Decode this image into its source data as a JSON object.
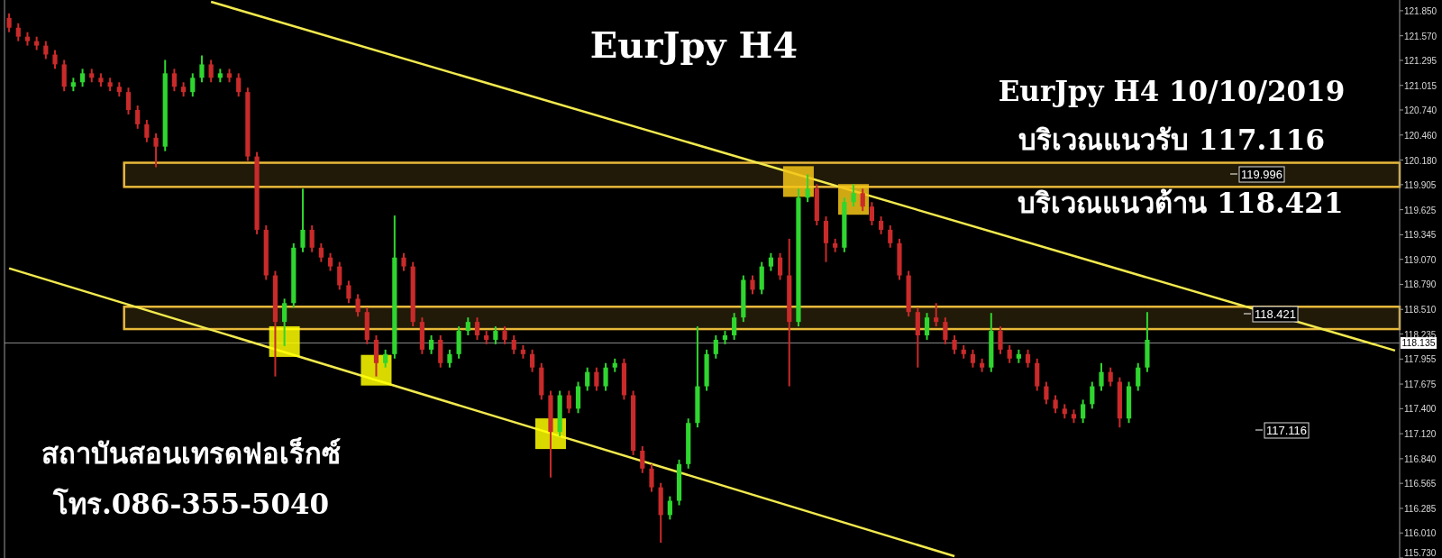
{
  "chart_data": {
    "type": "candlestick",
    "title": "EurJpy H4",
    "annotations": [
      "EurJpy H4 10/10/2019",
      "บริเวณแนวรับ 117.116",
      "บริเวณแนวต้าน 118.421",
      "สถาบันสอนเทรดฟอเร็กซ์",
      "โทร.086-355-5040",
      "119.996",
      "118.421",
      "117.116"
    ],
    "categories": [
      null,
      null,
      null,
      null,
      null,
      null,
      null,
      null,
      null,
      null,
      null,
      null,
      null,
      null,
      null,
      null,
      null,
      null,
      null,
      null,
      null,
      null,
      null,
      null,
      null,
      null,
      null,
      null,
      null,
      null,
      null,
      null,
      null,
      null,
      null,
      null,
      null,
      null,
      null,
      null,
      null,
      null,
      null,
      null,
      null,
      null,
      null,
      null,
      null,
      null,
      null,
      null,
      null,
      null,
      null,
      null,
      null,
      null,
      null,
      null,
      null,
      null,
      null,
      null,
      null,
      null,
      null,
      null,
      null,
      null,
      null,
      null,
      null,
      null,
      null,
      null,
      null,
      null,
      null,
      null,
      null,
      null,
      null,
      null,
      null,
      null,
      null,
      null,
      null,
      null,
      null,
      null,
      null,
      null,
      null,
      null,
      null,
      null,
      null,
      null,
      null,
      null,
      null,
      null,
      null,
      null,
      null,
      null,
      null,
      null,
      null,
      null,
      null,
      null,
      null,
      null,
      null,
      null,
      null,
      null,
      null,
      null,
      null,
      null,
      null,
      null,
      null,
      null,
      null,
      null,
      null,
      null,
      null,
      null,
      null,
      null,
      null,
      null,
      null,
      null,
      null,
      null,
      null,
      null,
      null,
      null,
      null,
      null,
      null,
      null,
      null,
      null
    ],
    "ohlc": [
      [
        121.77,
        121.82,
        121.61,
        121.66
      ],
      [
        121.66,
        121.71,
        121.51,
        121.56
      ],
      [
        121.56,
        121.61,
        121.46,
        121.51
      ],
      [
        121.51,
        121.56,
        121.41,
        121.46
      ],
      [
        121.46,
        121.51,
        121.31,
        121.36
      ],
      [
        121.36,
        121.41,
        121.2,
        121.25
      ],
      [
        121.25,
        121.3,
        120.95,
        121.0
      ],
      [
        121.0,
        121.1,
        120.95,
        121.05
      ],
      [
        121.05,
        121.2,
        121.0,
        121.15
      ],
      [
        121.15,
        121.2,
        121.05,
        121.1
      ],
      [
        121.1,
        121.15,
        121.0,
        121.05
      ],
      [
        121.05,
        121.1,
        120.95,
        121.0
      ],
      [
        121.0,
        121.05,
        120.89,
        120.94
      ],
      [
        120.94,
        120.99,
        120.69,
        120.74
      ],
      [
        120.74,
        120.79,
        120.53,
        120.58
      ],
      [
        120.58,
        120.63,
        120.38,
        120.43
      ],
      [
        120.43,
        120.48,
        120.1,
        120.33
      ],
      [
        120.33,
        121.3,
        120.28,
        121.15
      ],
      [
        121.15,
        121.2,
        120.95,
        121.0
      ],
      [
        121.0,
        121.05,
        120.89,
        120.94
      ],
      [
        120.94,
        121.15,
        120.89,
        121.1
      ],
      [
        121.1,
        121.35,
        121.05,
        121.25
      ],
      [
        121.25,
        121.3,
        121.05,
        121.1
      ],
      [
        121.1,
        121.2,
        121.05,
        121.15
      ],
      [
        121.15,
        121.2,
        121.05,
        121.1
      ],
      [
        121.1,
        121.15,
        120.89,
        120.94
      ],
      [
        120.94,
        120.99,
        120.17,
        120.22
      ],
      [
        120.22,
        120.27,
        119.35,
        119.4
      ],
      [
        119.4,
        119.45,
        118.84,
        118.89
      ],
      [
        118.89,
        118.94,
        117.76,
        118.37
      ],
      [
        118.37,
        118.63,
        118.1,
        118.58
      ],
      [
        118.58,
        119.25,
        118.53,
        119.2
      ],
      [
        119.2,
        119.86,
        119.15,
        119.4
      ],
      [
        119.4,
        119.45,
        119.15,
        119.2
      ],
      [
        119.2,
        119.25,
        119.04,
        119.09
      ],
      [
        119.09,
        119.14,
        118.94,
        118.99
      ],
      [
        118.99,
        119.04,
        118.73,
        118.78
      ],
      [
        118.78,
        118.83,
        118.58,
        118.63
      ],
      [
        118.63,
        118.68,
        118.43,
        118.48
      ],
      [
        118.48,
        118.53,
        118.12,
        118.17
      ],
      [
        118.17,
        118.22,
        117.76,
        117.91
      ],
      [
        117.91,
        118.06,
        117.86,
        118.01
      ],
      [
        118.01,
        119.56,
        117.96,
        119.09
      ],
      [
        119.09,
        119.14,
        118.94,
        118.99
      ],
      [
        118.99,
        119.04,
        118.32,
        118.37
      ],
      [
        118.37,
        118.42,
        118.01,
        118.06
      ],
      [
        118.06,
        118.22,
        118.01,
        118.17
      ],
      [
        118.17,
        118.22,
        117.86,
        117.91
      ],
      [
        117.91,
        118.06,
        117.86,
        118.01
      ],
      [
        118.01,
        118.32,
        117.96,
        118.27
      ],
      [
        118.27,
        118.42,
        118.22,
        118.37
      ],
      [
        118.37,
        118.42,
        118.17,
        118.22
      ],
      [
        118.22,
        118.27,
        118.12,
        118.17
      ],
      [
        118.17,
        118.32,
        118.12,
        118.27
      ],
      [
        118.27,
        118.32,
        118.12,
        118.17
      ],
      [
        118.17,
        118.22,
        118.01,
        118.06
      ],
      [
        118.06,
        118.11,
        117.96,
        118.01
      ],
      [
        118.01,
        118.06,
        117.81,
        117.86
      ],
      [
        117.86,
        117.91,
        117.5,
        117.55
      ],
      [
        117.55,
        117.6,
        116.63,
        117.14
      ],
      [
        117.14,
        117.6,
        117.09,
        117.55
      ],
      [
        117.55,
        117.6,
        117.35,
        117.4
      ],
      [
        117.4,
        117.7,
        117.35,
        117.65
      ],
      [
        117.65,
        117.86,
        117.6,
        117.81
      ],
      [
        117.81,
        117.86,
        117.6,
        117.65
      ],
      [
        117.65,
        117.91,
        117.6,
        117.86
      ],
      [
        117.86,
        117.96,
        117.81,
        117.91
      ],
      [
        117.91,
        117.96,
        117.5,
        117.55
      ],
      [
        117.55,
        117.6,
        116.88,
        116.93
      ],
      [
        116.93,
        116.98,
        116.68,
        116.73
      ],
      [
        116.73,
        116.78,
        116.47,
        116.52
      ],
      [
        116.52,
        116.57,
        115.9,
        116.21
      ],
      [
        116.21,
        116.42,
        116.16,
        116.37
      ],
      [
        116.37,
        116.83,
        116.32,
        116.78
      ],
      [
        116.78,
        117.29,
        116.73,
        117.24
      ],
      [
        117.24,
        118.32,
        117.19,
        117.65
      ],
      [
        117.65,
        118.06,
        117.6,
        118.01
      ],
      [
        118.01,
        118.22,
        117.96,
        118.17
      ],
      [
        118.17,
        118.27,
        118.12,
        118.22
      ],
      [
        118.22,
        118.47,
        118.17,
        118.42
      ],
      [
        118.42,
        118.89,
        118.37,
        118.84
      ],
      [
        118.84,
        118.89,
        118.68,
        118.73
      ],
      [
        118.73,
        119.04,
        118.68,
        118.99
      ],
      [
        118.99,
        119.14,
        118.94,
        119.09
      ],
      [
        119.09,
        119.14,
        118.84,
        118.89
      ],
      [
        118.89,
        119.3,
        117.65,
        118.37
      ],
      [
        118.37,
        119.86,
        118.32,
        119.76
      ],
      [
        119.76,
        120.02,
        119.71,
        119.86
      ],
      [
        119.86,
        119.91,
        119.45,
        119.5
      ],
      [
        119.5,
        119.55,
        119.04,
        119.25
      ],
      [
        119.25,
        119.3,
        119.15,
        119.2
      ],
      [
        119.2,
        119.76,
        119.15,
        119.71
      ],
      [
        119.71,
        119.91,
        119.66,
        119.81
      ],
      [
        119.81,
        119.86,
        119.61,
        119.66
      ],
      [
        119.66,
        119.71,
        119.45,
        119.5
      ],
      [
        119.5,
        119.55,
        119.35,
        119.4
      ],
      [
        119.4,
        119.45,
        119.2,
        119.25
      ],
      [
        119.25,
        119.3,
        118.84,
        118.89
      ],
      [
        118.89,
        118.94,
        118.43,
        118.48
      ],
      [
        118.48,
        118.53,
        117.86,
        118.22
      ],
      [
        118.22,
        118.47,
        118.17,
        118.42
      ],
      [
        118.42,
        118.58,
        118.32,
        118.37
      ],
      [
        118.37,
        118.42,
        118.12,
        118.17
      ],
      [
        118.17,
        118.22,
        118.01,
        118.06
      ],
      [
        118.06,
        118.11,
        117.96,
        118.01
      ],
      [
        118.01,
        118.06,
        117.86,
        117.91
      ],
      [
        117.91,
        117.96,
        117.81,
        117.86
      ],
      [
        117.86,
        118.47,
        117.81,
        118.27
      ],
      [
        118.27,
        118.32,
        118.01,
        118.06
      ],
      [
        118.06,
        118.11,
        117.91,
        117.96
      ],
      [
        117.96,
        118.06,
        117.91,
        118.01
      ],
      [
        118.01,
        118.06,
        117.86,
        117.91
      ],
      [
        117.91,
        117.96,
        117.6,
        117.65
      ],
      [
        117.65,
        117.7,
        117.45,
        117.5
      ],
      [
        117.5,
        117.55,
        117.35,
        117.4
      ],
      [
        117.4,
        117.45,
        117.29,
        117.34
      ],
      [
        117.34,
        117.39,
        117.24,
        117.29
      ],
      [
        117.29,
        117.5,
        117.24,
        117.45
      ],
      [
        117.45,
        117.7,
        117.4,
        117.65
      ],
      [
        117.65,
        117.91,
        117.6,
        117.81
      ],
      [
        117.81,
        117.86,
        117.65,
        117.7
      ],
      [
        117.7,
        117.75,
        117.19,
        117.29
      ],
      [
        117.29,
        117.7,
        117.24,
        117.65
      ],
      [
        117.65,
        117.91,
        117.6,
        117.86
      ],
      [
        117.86,
        118.48,
        117.81,
        118.17
      ],
      null,
      null,
      null,
      null,
      null,
      null,
      null,
      null,
      null,
      null,
      null,
      null,
      null,
      null,
      null,
      null,
      null,
      null,
      null,
      null,
      null,
      null,
      null,
      null,
      null,
      null,
      null
    ],
    "series": [
      {
        "type": "line",
        "color": "#f2e94e",
        "values": [
          null,
          null,
          null,
          null,
          null,
          null,
          null,
          null,
          null,
          null,
          null,
          null,
          null,
          null,
          null,
          null,
          null,
          null,
          null,
          null,
          null,
          null,
          121.95,
          null,
          null,
          null,
          null,
          null,
          null,
          null,
          null,
          null,
          null,
          null,
          null,
          null,
          null,
          null,
          null,
          null,
          null,
          null,
          null,
          null,
          null,
          null,
          null,
          null,
          null,
          null,
          null,
          null,
          null,
          null,
          null,
          null,
          null,
          null,
          null,
          null,
          null,
          null,
          null,
          null,
          null,
          null,
          null,
          null,
          null,
          null,
          null,
          null,
          null,
          null,
          null,
          null,
          null,
          null,
          null,
          null,
          null,
          null,
          null,
          null,
          null,
          null,
          null,
          null,
          null,
          null,
          null,
          null,
          null,
          null,
          null,
          null,
          null,
          null,
          null,
          null,
          null,
          null,
          null,
          null,
          null,
          null,
          null,
          null,
          null,
          null,
          null,
          null,
          null,
          null,
          null,
          null,
          null,
          null,
          null,
          null,
          null,
          null,
          null,
          null,
          null,
          null,
          null,
          null,
          null,
          null,
          null,
          null,
          null,
          null,
          null,
          null,
          null,
          null,
          null,
          null,
          null,
          null,
          null,
          null,
          null,
          null,
          null,
          null,
          null,
          null,
          null,
          118.05
        ]
      },
      {
        "type": "line",
        "color": "#f2e94e",
        "values": [
          118.97,
          null,
          null,
          null,
          null,
          null,
          null,
          null,
          null,
          null,
          null,
          null,
          null,
          null,
          null,
          null,
          null,
          null,
          null,
          null,
          null,
          null,
          null,
          null,
          null,
          null,
          null,
          null,
          null,
          null,
          null,
          null,
          null,
          null,
          null,
          null,
          null,
          null,
          null,
          null,
          null,
          null,
          null,
          null,
          null,
          null,
          null,
          null,
          null,
          null,
          null,
          null,
          null,
          null,
          null,
          null,
          null,
          null,
          null,
          null,
          null,
          null,
          null,
          null,
          null,
          null,
          null,
          null,
          null,
          null,
          null,
          null,
          null,
          null,
          null,
          null,
          null,
          null,
          null,
          null,
          null,
          null,
          null,
          null,
          null,
          null,
          null,
          null,
          null,
          null,
          null,
          null,
          null,
          null,
          null,
          null,
          null,
          null,
          null,
          null,
          null,
          null,
          null,
          115.75,
          null,
          null,
          null,
          null,
          null,
          null,
          null,
          null,
          null,
          null,
          null,
          null,
          null,
          null,
          null,
          null,
          null,
          null,
          null,
          null,
          null,
          null,
          null,
          null,
          null,
          null,
          null,
          null,
          null,
          null,
          null,
          null,
          null,
          null,
          null,
          null,
          null,
          null,
          null,
          null,
          null,
          null,
          null,
          null,
          null,
          null,
          null,
          null
        ]
      },
      {
        "type": "scatter",
        "marker": "square",
        "colors": [
          null,
          null,
          null,
          null,
          null,
          null,
          null,
          null,
          null,
          null,
          null,
          null,
          null,
          null,
          null,
          null,
          null,
          null,
          null,
          null,
          null,
          null,
          null,
          null,
          null,
          null,
          null,
          null,
          null,
          null,
          "#ffff00",
          null,
          null,
          null,
          null,
          null,
          null,
          null,
          null,
          null,
          "#ffff00",
          null,
          null,
          null,
          null,
          null,
          null,
          null,
          null,
          null,
          null,
          null,
          null,
          null,
          null,
          null,
          null,
          null,
          null,
          "#ffff00",
          null,
          null,
          null,
          null,
          null,
          null,
          null,
          null,
          null,
          null,
          null,
          null,
          null,
          null,
          null,
          null,
          null,
          null,
          null,
          null,
          null,
          null,
          null,
          null,
          null,
          null,
          "#f5c518",
          null,
          null,
          null,
          null,
          null,
          "#f5c518",
          null,
          null,
          null,
          null,
          null,
          null,
          null,
          null,
          null,
          null,
          null,
          null,
          null,
          null,
          null,
          null,
          null,
          null,
          null,
          null,
          null,
          null,
          null,
          null,
          null,
          null,
          null,
          null,
          null,
          null,
          null,
          null,
          null,
          null,
          null,
          null,
          null,
          null,
          null,
          null,
          null,
          null,
          null,
          null,
          null,
          null,
          null,
          null,
          null,
          null,
          null,
          null,
          null,
          null,
          null,
          null,
          null,
          null,
          null
        ],
        "values": [
          null,
          null,
          null,
          null,
          null,
          null,
          null,
          null,
          null,
          null,
          null,
          null,
          null,
          null,
          null,
          null,
          null,
          null,
          null,
          null,
          null,
          null,
          null,
          null,
          null,
          null,
          null,
          null,
          null,
          null,
          118.15,
          null,
          null,
          null,
          null,
          null,
          null,
          null,
          null,
          null,
          117.83,
          null,
          null,
          null,
          null,
          null,
          null,
          null,
          null,
          null,
          null,
          null,
          null,
          null,
          null,
          null,
          null,
          null,
          null,
          117.12,
          null,
          null,
          null,
          null,
          null,
          null,
          null,
          null,
          null,
          null,
          null,
          null,
          null,
          null,
          null,
          null,
          null,
          null,
          null,
          null,
          null,
          null,
          null,
          null,
          null,
          null,
          119.94,
          null,
          null,
          null,
          null,
          null,
          119.74,
          null,
          null,
          null,
          null,
          null,
          null,
          null,
          null,
          null,
          null,
          null,
          null,
          null,
          null,
          null,
          null,
          null,
          null,
          null,
          null,
          null,
          null,
          null,
          null,
          null,
          null,
          null,
          null,
          null,
          null,
          null,
          null,
          null,
          null,
          null,
          null,
          null,
          null,
          null,
          null,
          null,
          null,
          null,
          null,
          null,
          null,
          null,
          null,
          null,
          null,
          null,
          null,
          null,
          null,
          null,
          null,
          null,
          null,
          null
        ]
      }
    ],
    "bands": [
      {
        "axis": "y",
        "from": 119.88,
        "to": 120.15,
        "color": "#e8b93a"
      },
      {
        "axis": "y",
        "from": 118.29,
        "to": 118.54,
        "color": "#e8b93a"
      }
    ],
    "ref_lines": [
      {
        "axis": "y",
        "value": 118.135,
        "label": "118.135",
        "color": "#8a8a8a"
      }
    ],
    "ylim": [
      115.73,
      121.97
    ],
    "yticks": [
      {
        "value": 121.85,
        "label": "121.850"
      },
      {
        "value": 121.57,
        "label": "121.570"
      },
      {
        "value": 121.295,
        "label": "121.295"
      },
      {
        "value": 121.015,
        "label": "121.015"
      },
      {
        "value": 120.74,
        "label": "120.740"
      },
      {
        "value": 120.46,
        "label": "120.460"
      },
      {
        "value": 120.18,
        "label": "120.180"
      },
      {
        "value": 119.905,
        "label": "119.905"
      },
      {
        "value": 119.625,
        "label": "119.625"
      },
      {
        "value": 119.345,
        "label": "119.345"
      },
      {
        "value": 119.07,
        "label": "119.070"
      },
      {
        "value": 118.79,
        "label": "118.790"
      },
      {
        "value": 118.51,
        "label": "118.510"
      },
      {
        "value": 118.235,
        "label": "118.235"
      },
      {
        "value": 117.955,
        "label": "117.955"
      },
      {
        "value": 117.675,
        "label": "117.675"
      },
      {
        "value": 117.4,
        "label": "117.400"
      },
      {
        "value": 117.12,
        "label": "117.120"
      },
      {
        "value": 116.84,
        "label": "116.840"
      },
      {
        "value": 116.565,
        "label": "116.565"
      },
      {
        "value": 116.285,
        "label": "116.285"
      },
      {
        "value": 116.01,
        "label": "116.010"
      },
      {
        "value": 115.73,
        "label": "115.730"
      }
    ],
    "tick_labels": "y"
  }
}
